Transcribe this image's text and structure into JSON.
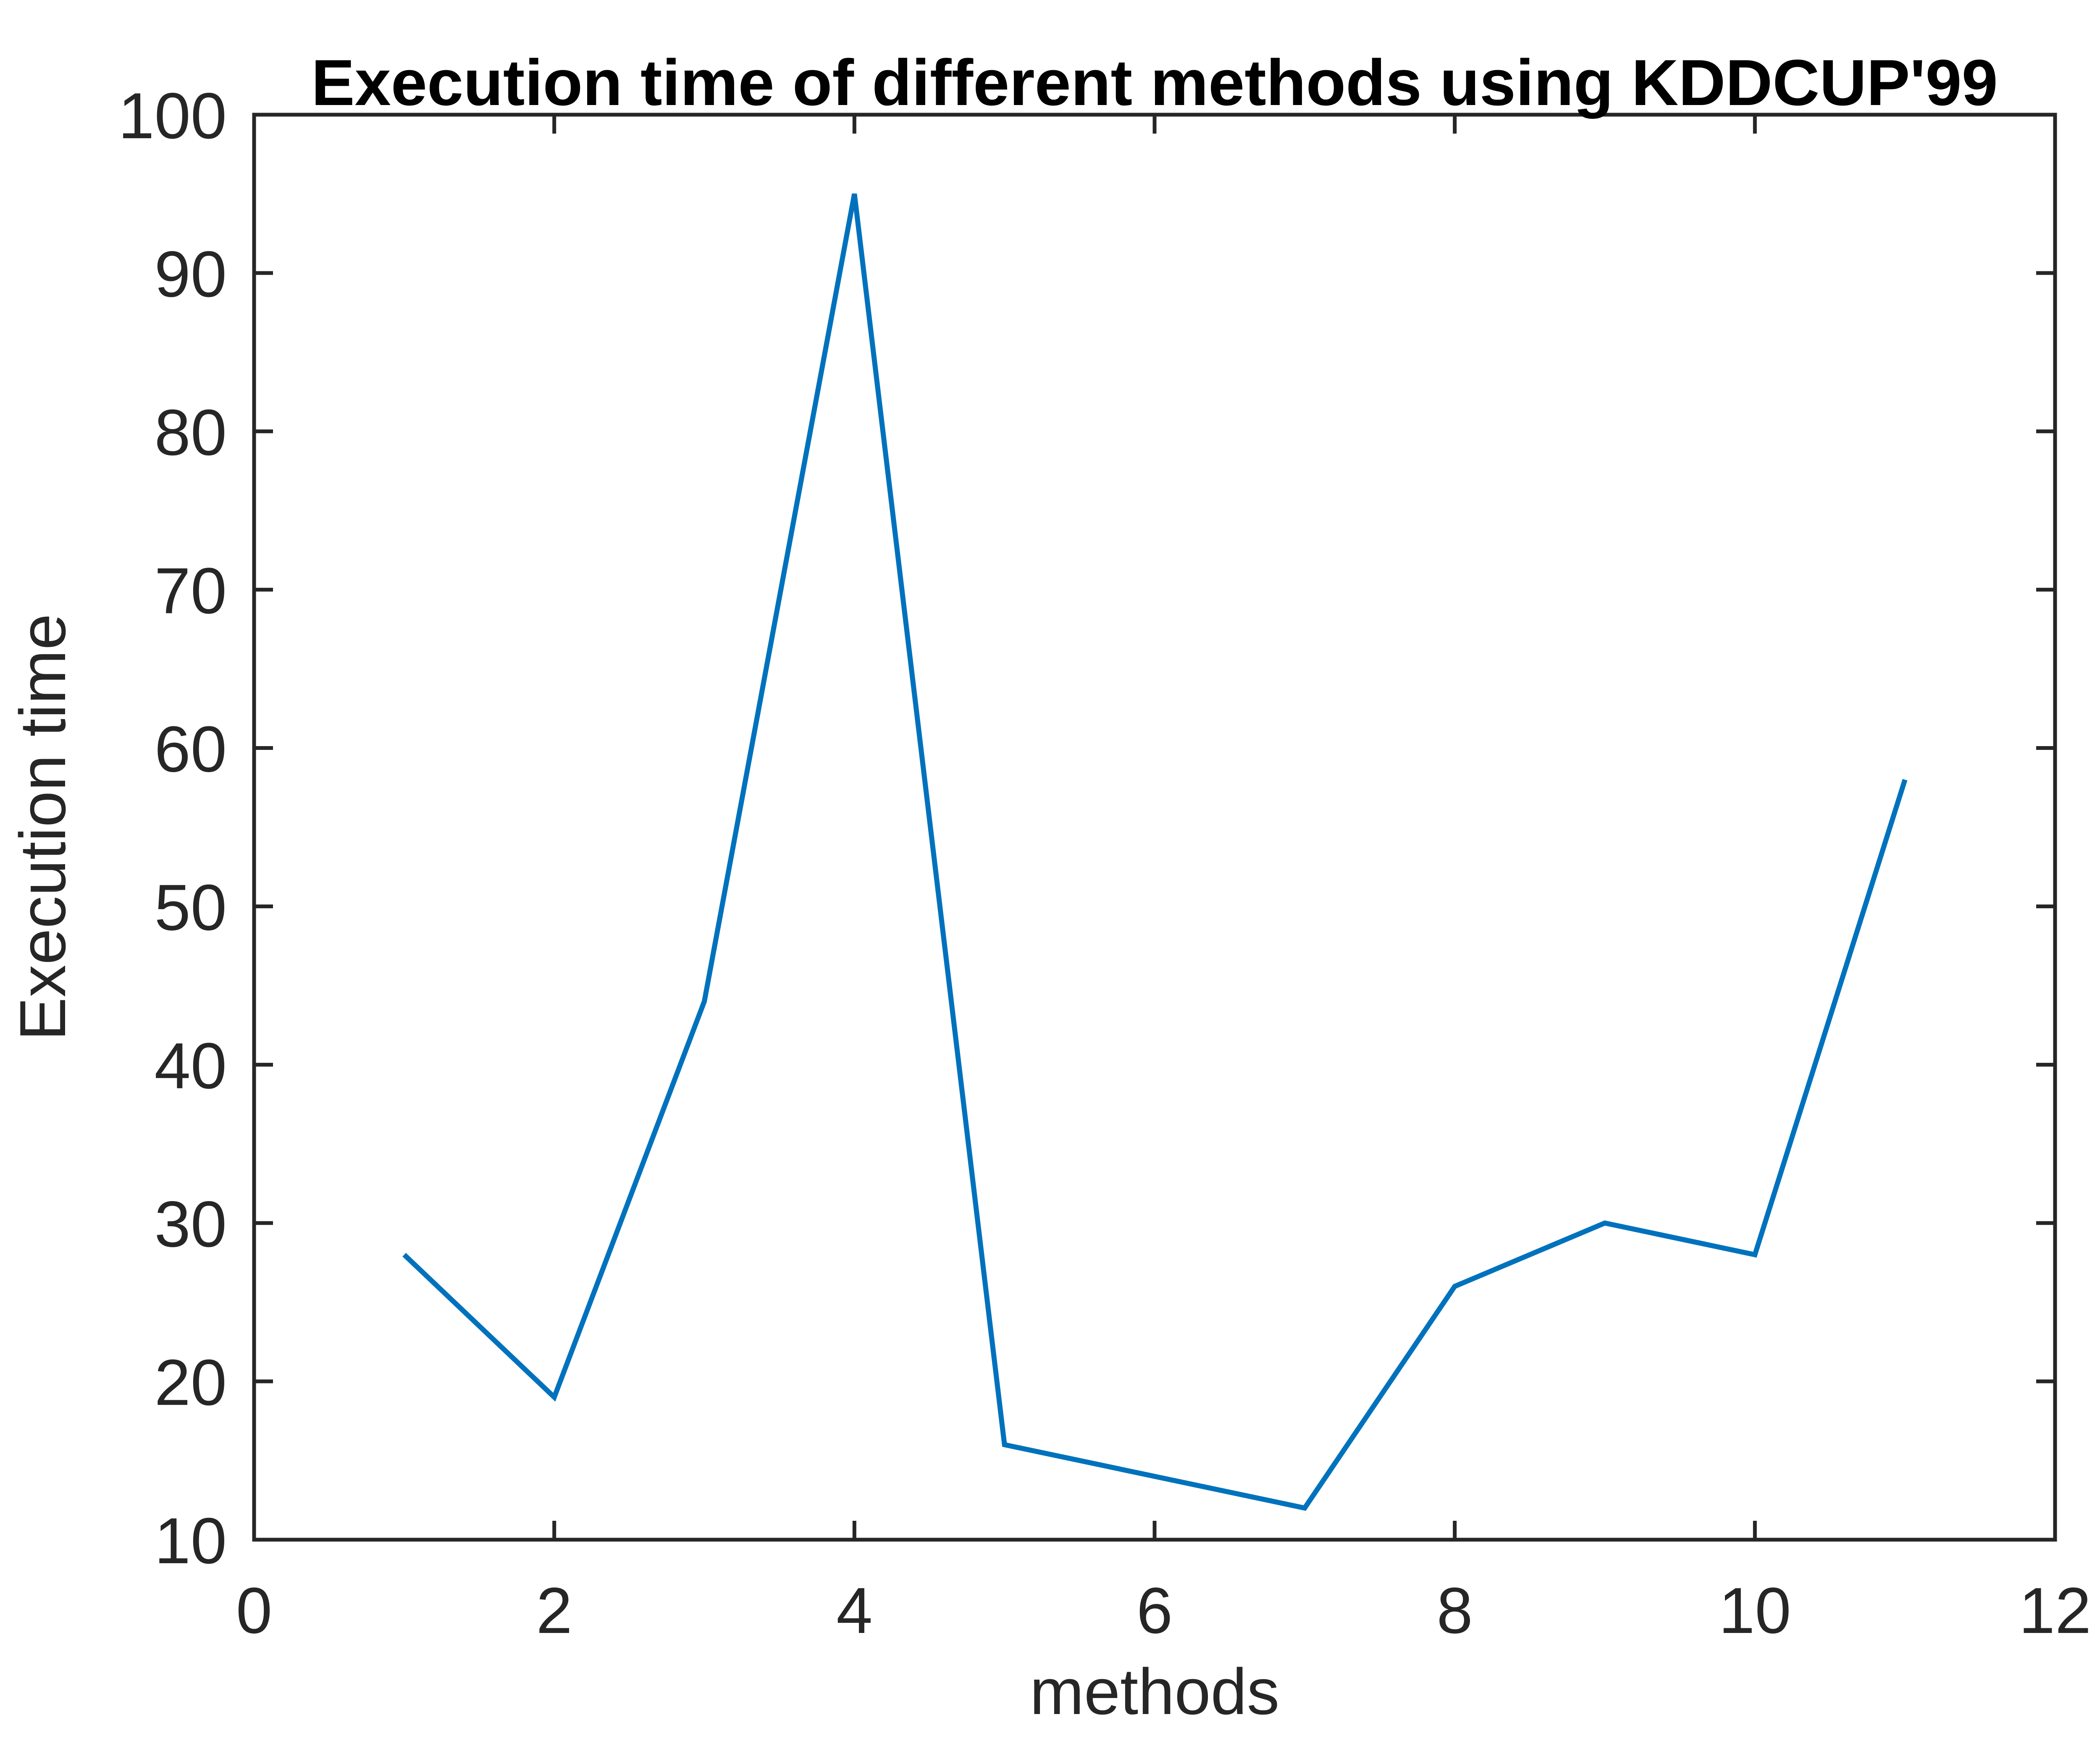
{
  "chart_data": {
    "type": "line",
    "title": "Execution time of different methods using KDDCUP'99",
    "xlabel": "methods",
    "ylabel": "Execution time",
    "x": [
      1,
      2,
      3,
      4,
      5,
      6,
      7,
      8,
      9,
      10,
      11
    ],
    "y": [
      28,
      19,
      44,
      95,
      16,
      14,
      12,
      26,
      30,
      28,
      58
    ],
    "series_name": "Execution time",
    "xlim": [
      0,
      12
    ],
    "ylim": [
      10,
      100
    ],
    "xticks": [
      0,
      2,
      4,
      6,
      8,
      10,
      12
    ],
    "yticks": [
      10,
      20,
      30,
      40,
      50,
      60,
      70,
      80,
      90,
      100
    ],
    "grid": false,
    "legend": "none",
    "box": true,
    "tick_direction": "in",
    "line_color": "#0072BD",
    "axis_color": "#262626",
    "title_color": "#000000",
    "background_color": "#ffffff"
  }
}
